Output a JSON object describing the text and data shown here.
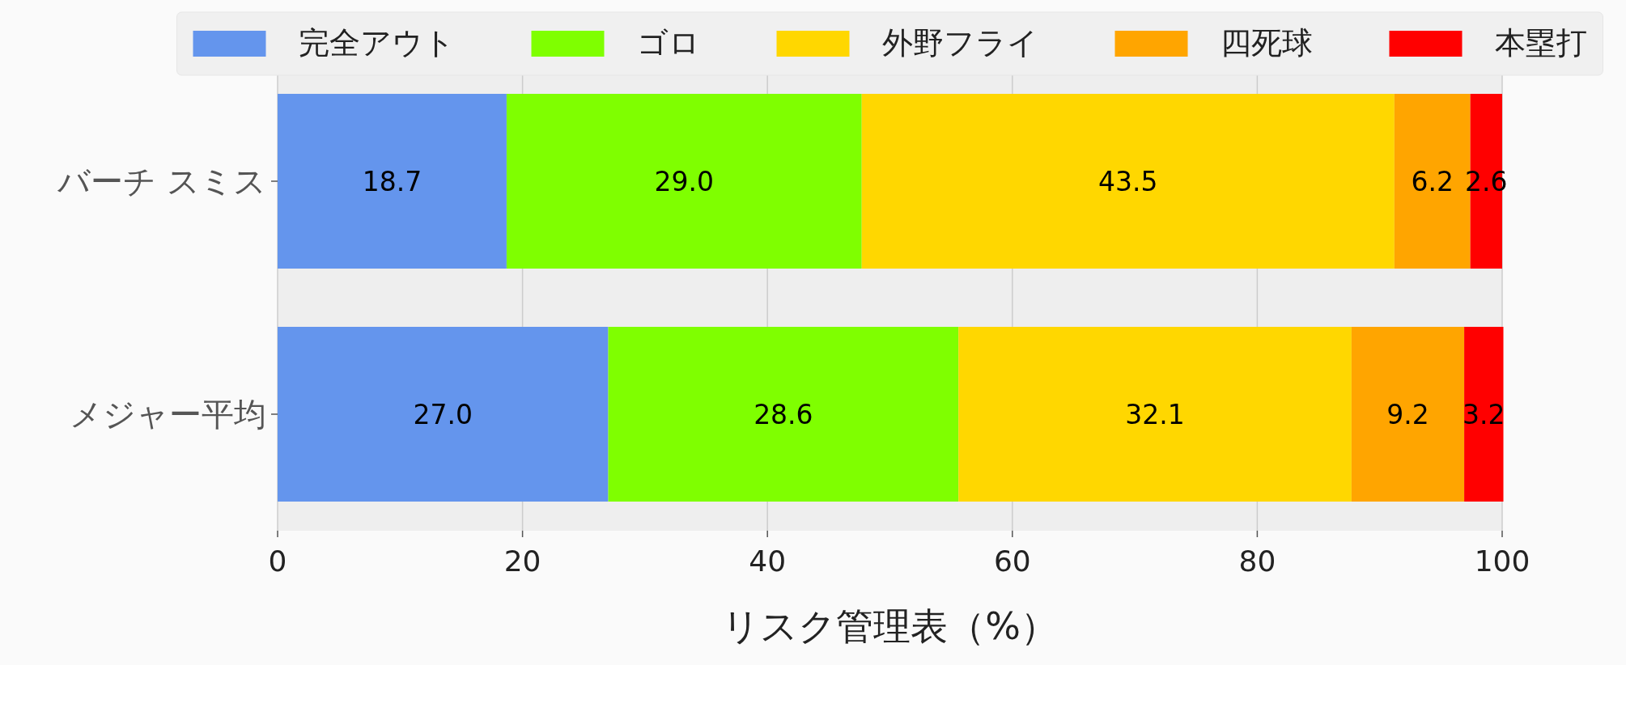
{
  "chart_data": {
    "type": "bar",
    "orientation": "horizontal",
    "stacked": true,
    "categories": [
      "バーチ スミス",
      "メジャー平均"
    ],
    "series": [
      {
        "name": "完全アウト",
        "color": "#6495ed",
        "values": [
          18.7,
          27.0
        ],
        "value_labels": [
          "18.7",
          "27.0"
        ]
      },
      {
        "name": "ゴロ",
        "color": "#7fff00",
        "values": [
          29.0,
          28.6
        ],
        "value_labels": [
          "29.0",
          "28.6"
        ]
      },
      {
        "name": "外野フライ",
        "color": "#ffd700",
        "values": [
          43.5,
          32.1
        ],
        "value_labels": [
          "43.5",
          "32.1"
        ]
      },
      {
        "name": "四死球",
        "color": "#ffa500",
        "values": [
          6.2,
          9.2
        ],
        "value_labels": [
          "6.2",
          "9.2"
        ]
      },
      {
        "name": "本塁打",
        "color": "#ff0000",
        "values": [
          2.6,
          3.2
        ],
        "value_labels": [
          "2.6",
          "3.2"
        ]
      }
    ],
    "xlabel": "リスク管理表（%）",
    "xlim": [
      0,
      100
    ],
    "xticks": [
      0,
      20,
      40,
      60,
      80,
      100
    ],
    "grid": "x",
    "legend": "top"
  }
}
